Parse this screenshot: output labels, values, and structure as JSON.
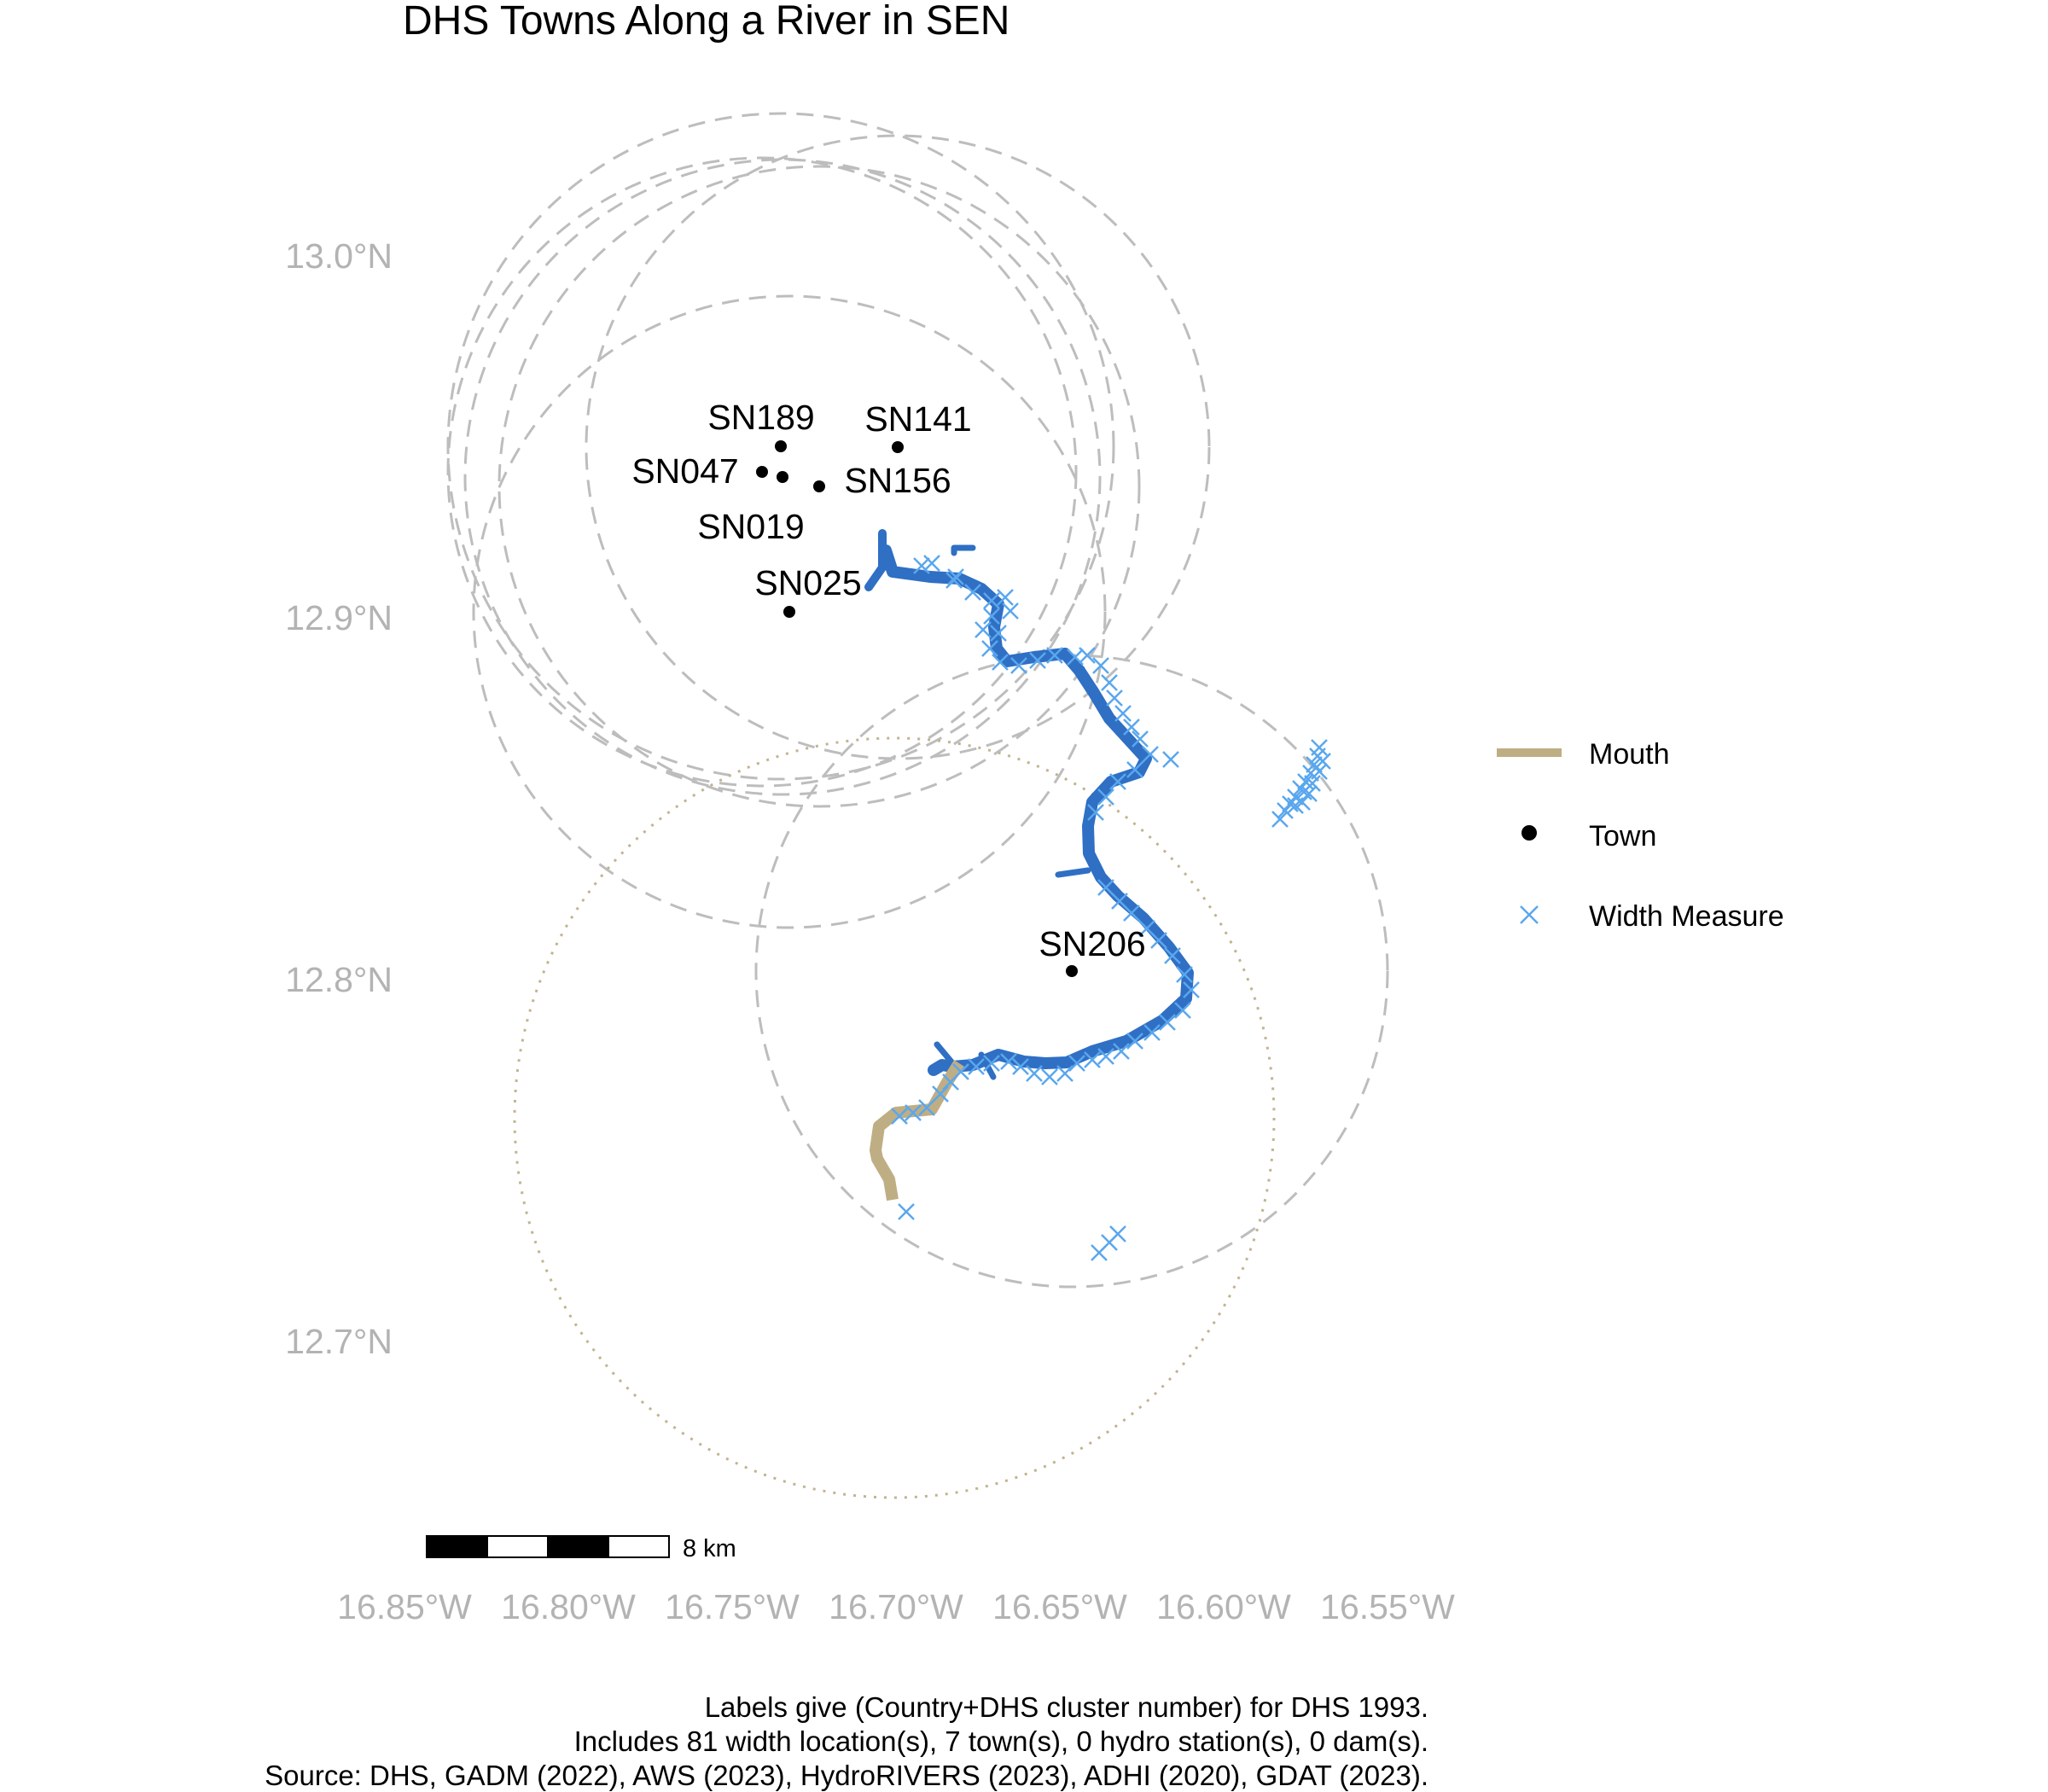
{
  "title": "DHS Towns Along a River in SEN",
  "colors": {
    "river": "#2f6fc4",
    "mouth": "#bfae84",
    "width_measure": "#5aa7ee",
    "town": "#000000",
    "buffer_circle": "#bdbdbd",
    "mouth_circle": "#c2b48f",
    "axis_text": "#b3b3b3"
  },
  "axes": {
    "lat_labels": [
      "13.0°N",
      "12.9°N",
      "12.8°N",
      "12.7°N"
    ],
    "lon_labels": [
      "16.85°W",
      "16.80°W",
      "16.75°W",
      "16.70°W",
      "16.65°W",
      "16.60°W",
      "16.55°W"
    ]
  },
  "towns": [
    {
      "id": "SN189",
      "label": "SN189"
    },
    {
      "id": "SN141",
      "label": "SN141"
    },
    {
      "id": "SN047",
      "label": "SN047"
    },
    {
      "id": "SN156",
      "label": "SN156"
    },
    {
      "id": "SN019",
      "label": "SN019"
    },
    {
      "id": "SN025",
      "label": "SN025"
    },
    {
      "id": "SN206",
      "label": "SN206"
    }
  ],
  "legend": {
    "items": [
      {
        "key": "mouth",
        "label": "Mouth",
        "symbol": "line"
      },
      {
        "key": "town",
        "label": "Town",
        "symbol": "dot"
      },
      {
        "key": "width",
        "label": "Width Measure",
        "symbol": "cross"
      }
    ]
  },
  "scale_bar": {
    "label": "8 km"
  },
  "caption": {
    "line1": "Labels give (Country+DHS cluster number) for DHS 1993.",
    "line2": "Includes 81 width location(s), 7 town(s), 0 hydro station(s), 0 dam(s).",
    "line3": "Source: DHS, GADM (2022), AWS (2023), HydroRIVERS (2023), ADHI (2020), GDAT (2023)."
  }
}
